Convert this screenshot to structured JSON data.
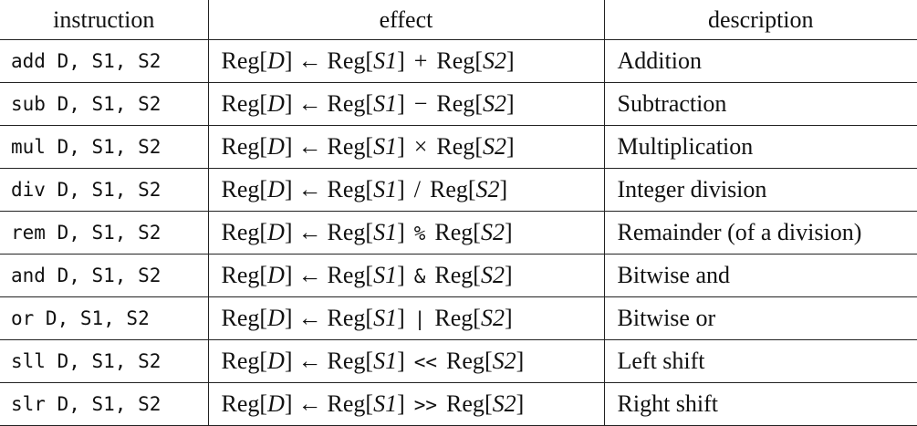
{
  "headers": [
    "instruction",
    "effect",
    "description"
  ],
  "rows": [
    {
      "instruction": "add D, S1, S2",
      "op": "+",
      "op_mono": false,
      "description": "Addition"
    },
    {
      "instruction": "sub D, S1, S2",
      "op": "−",
      "op_mono": false,
      "description": "Subtraction"
    },
    {
      "instruction": "mul D, S1, S2",
      "op": "×",
      "op_mono": false,
      "description": "Multiplication"
    },
    {
      "instruction": "div D, S1, S2",
      "op": "/",
      "op_mono": false,
      "description": "Integer division"
    },
    {
      "instruction": "rem D, S1, S2",
      "op": "%",
      "op_mono": true,
      "description": "Remainder (of a division)"
    },
    {
      "instruction": "and D, S1, S2",
      "op": "&",
      "op_mono": true,
      "description": "Bitwise and"
    },
    {
      "instruction": "or D, S1, S2",
      "op": "|",
      "op_mono": true,
      "description": "Bitwise or"
    },
    {
      "instruction": "sll D, S1, S2",
      "op": "<<",
      "op_mono": true,
      "description": "Left shift"
    },
    {
      "instruction": "slr D, S1, S2",
      "op": ">>",
      "op_mono": true,
      "description": "Right shift"
    }
  ],
  "effect_parts": {
    "reg": "Reg",
    "dest": "D",
    "src1": "S1",
    "src2": "S2",
    "arrow": "←",
    "open": "[",
    "close": "]"
  }
}
